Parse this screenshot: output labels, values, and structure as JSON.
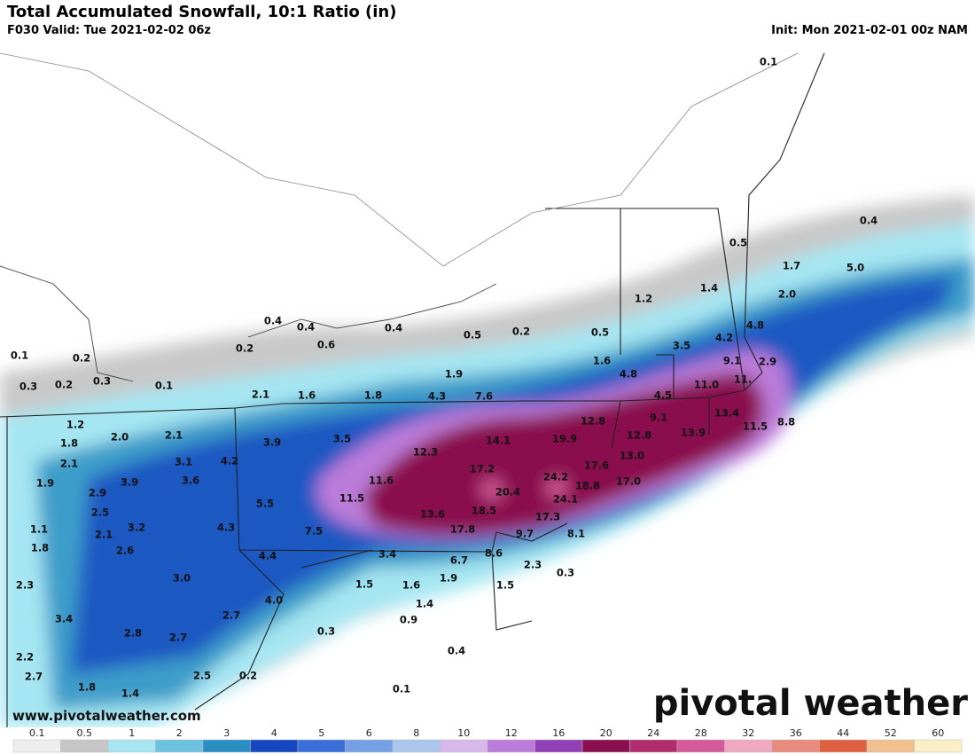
{
  "header": {
    "title": "Total Accumulated Snowfall, 10:1 Ratio (in)",
    "valid": "F030 Valid: Tue 2021-02-02 06z",
    "init": "Init: Mon 2021-02-01 00z NAM"
  },
  "map_labels": [
    "0.1",
    "0.4",
    "0.5",
    "1.7",
    "5.0",
    "2.0",
    "1.4",
    "1.2",
    "4.8",
    "4.2",
    "3.5",
    "0.5",
    "0.2",
    "0.5",
    "0.4",
    "0.4",
    "0.4",
    "0.6",
    "0.2",
    "9.1",
    "2.9",
    "1.6",
    "4.8",
    "1.9",
    "11.0",
    "11.",
    "4.5",
    "2.1",
    "1.6",
    "1.8",
    "4.3",
    "7.6",
    "0.1",
    "0.1",
    "0.2",
    "0.3",
    "0.2",
    "0.3",
    "13.4",
    "9.1",
    "12.8",
    "11.5",
    "8.8",
    "1.2",
    "1.8",
    "2.0",
    "2.1",
    "3.9",
    "3.5",
    "14.1",
    "19.9",
    "12.8",
    "13.9",
    "12.3",
    "13.0",
    "3.1",
    "4.2",
    "2.1",
    "17.6",
    "17.2",
    "24.2",
    "17.0",
    "11.6",
    "3.9",
    "3.6",
    "1.9",
    "18.8",
    "20.4",
    "24.1",
    "11.5",
    "2.9",
    "5.5",
    "18.5",
    "2.5",
    "13.6",
    "17.3",
    "1.1",
    "3.2",
    "4.3",
    "7.5",
    "17.8",
    "9.7",
    "8.1",
    "2.1",
    "1.8",
    "2.6",
    "4.4",
    "3.4",
    "8.6",
    "6.7",
    "2.3",
    "3.0",
    "1.9",
    "1.5",
    "1.6",
    "1.5",
    "0.3",
    "2.3",
    "4.0",
    "1.4",
    "2.7",
    "3.4",
    "0.9",
    "2.8",
    "2.7",
    "0.3",
    "2.2",
    "0.4",
    "2.7",
    "2.5",
    "0.2",
    "1.8",
    "1.4",
    "0.1"
  ],
  "legend": {
    "labels": [
      "0.1",
      "0.5",
      "1",
      "2",
      "3",
      "4",
      "5",
      "6",
      "8",
      "10",
      "12",
      "16",
      "20",
      "24",
      "28",
      "32",
      "36",
      "44",
      "52",
      "60"
    ],
    "colors": [
      "#eeeeee",
      "#c6c6c6",
      "#a6e6f2",
      "#6cc2e0",
      "#2a8fc2",
      "#1547c0",
      "#3b6fd8",
      "#75a0e6",
      "#abc6ec",
      "#d8b8ea",
      "#bb7bd9",
      "#9140b6",
      "#8a0f4e",
      "#b02d6e",
      "#d45a9c",
      "#eea8c0",
      "#e88b7c",
      "#df6040",
      "#f0c08e",
      "#fbefc7"
    ]
  },
  "branding": {
    "logo": "pivotal weather",
    "url": "www.pivotalweather.com"
  }
}
